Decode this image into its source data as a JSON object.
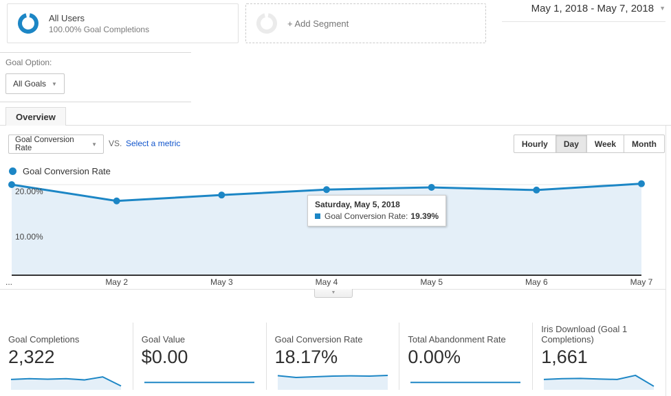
{
  "colors": {
    "accent_blue": "#1c86c5",
    "area_fill": "#e4eff8",
    "gridline": "#e6e6e6",
    "link_blue": "#1155cc"
  },
  "header": {
    "segment": {
      "title": "All Users",
      "subtitle": "100.00% Goal Completions"
    },
    "add_segment_label": "+ Add Segment",
    "date_range": "May 1, 2018 - May 7, 2018"
  },
  "goal_option": {
    "label": "Goal Option:",
    "selected": "All Goals"
  },
  "tab": {
    "label": "Overview"
  },
  "controls": {
    "metric_select": "Goal Conversion Rate",
    "vs_label": "VS.",
    "compare_link": "Select a metric",
    "granularity": {
      "options": [
        "Hourly",
        "Day",
        "Week",
        "Month"
      ],
      "selected": "Day"
    }
  },
  "legend": {
    "label": "Goal Conversion Rate"
  },
  "chart_data": {
    "type": "line",
    "title": "Goal Conversion Rate by day",
    "x": [
      "May 1",
      "May 2",
      "May 3",
      "May 4",
      "May 5",
      "May 6",
      "May 7"
    ],
    "x_axis_labels": [
      "...",
      "May 2",
      "May 3",
      "May 4",
      "May 5",
      "May 6",
      "May 7"
    ],
    "series": [
      {
        "name": "Goal Conversion Rate",
        "unit": "%",
        "values": [
          20.0,
          16.4,
          17.7,
          18.9,
          19.39,
          18.8,
          20.2
        ]
      }
    ],
    "y_gridlines": [
      {
        "value": 20,
        "label": "20.00%"
      },
      {
        "value": 10,
        "label": "10.00%"
      }
    ],
    "ylim": [
      0,
      21.1
    ],
    "area_fill": true,
    "legend_position": "top-left"
  },
  "tooltip": {
    "title": "Saturday, May 5, 2018",
    "metric_label": "Goal Conversion Rate:",
    "value": "19.39%"
  },
  "summary_cards": [
    {
      "label": "Goal Completions",
      "value": "2,322",
      "spark_shape": [
        0.55,
        0.6,
        0.57,
        0.6,
        0.52,
        0.72,
        0.12
      ],
      "spark_fill": true
    },
    {
      "label": "Goal Value",
      "value": "$0.00",
      "spark_shape": [
        0.35,
        0.35,
        0.35,
        0.35,
        0.35,
        0.35,
        0.35
      ],
      "spark_fill": false
    },
    {
      "label": "Goal Conversion Rate",
      "value": "18.17%",
      "spark_shape": [
        0.8,
        0.68,
        0.73,
        0.77,
        0.79,
        0.77,
        0.82
      ],
      "spark_fill": true
    },
    {
      "label": "Total Abandonment Rate",
      "value": "0.00%",
      "spark_shape": [
        0.35,
        0.35,
        0.35,
        0.35,
        0.35,
        0.35,
        0.35
      ],
      "spark_fill": false
    },
    {
      "label": "Iris Download (Goal 1 Completions)",
      "value": "1,661",
      "spark_shape": [
        0.55,
        0.6,
        0.62,
        0.58,
        0.55,
        0.82,
        0.1
      ],
      "spark_fill": true
    }
  ]
}
